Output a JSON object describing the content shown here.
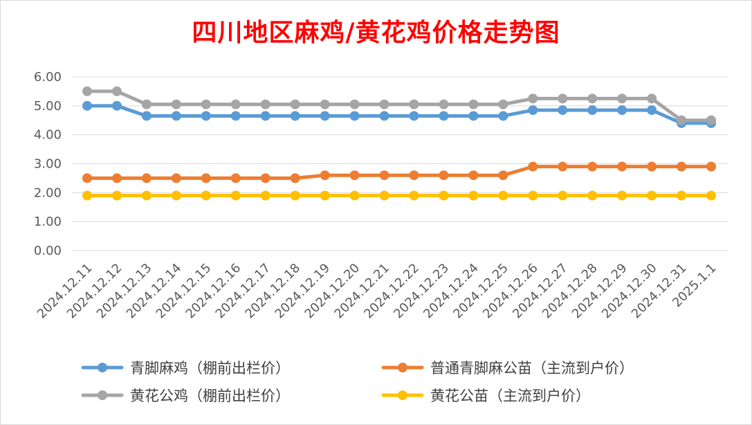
{
  "chart_data": {
    "type": "line",
    "title": "四川地区麻鸡/黄花鸡价格走势图",
    "xlabel": "",
    "ylabel": "",
    "ylim": [
      0,
      6
    ],
    "ytick_step": 1,
    "ytick_labels": [
      "0.00",
      "1.00",
      "2.00",
      "3.00",
      "4.00",
      "5.00",
      "6.00"
    ],
    "grid": "horizontal",
    "legend_position": "bottom",
    "categories": [
      "2024.12.11",
      "2024.12.12",
      "2024.12.13",
      "2024.12.14",
      "2024.12.15",
      "2024.12.16",
      "2024.12.17",
      "2024.12.18",
      "2024.12.19",
      "2024.12.20",
      "2024.12.21",
      "2024.12.22",
      "2024.12.23",
      "2024.12.24",
      "2024.12.25",
      "2024.12.26",
      "2024.12.27",
      "2024.12.28",
      "2024.12.29",
      "2024.12.30",
      "2024.12.31",
      "2025.1.1"
    ],
    "series": [
      {
        "name": "青脚麻鸡（棚前出栏价）",
        "color": "#5b9bd5",
        "values": [
          5.0,
          5.0,
          4.65,
          4.65,
          4.65,
          4.65,
          4.65,
          4.65,
          4.65,
          4.65,
          4.65,
          4.65,
          4.65,
          4.65,
          4.65,
          4.85,
          4.85,
          4.85,
          4.85,
          4.85,
          4.4,
          4.4
        ]
      },
      {
        "name": "普通青脚麻公苗（主流到户价）",
        "color": "#ed7d31",
        "values": [
          2.5,
          2.5,
          2.5,
          2.5,
          2.5,
          2.5,
          2.5,
          2.5,
          2.6,
          2.6,
          2.6,
          2.6,
          2.6,
          2.6,
          2.6,
          2.9,
          2.9,
          2.9,
          2.9,
          2.9,
          2.9,
          2.9
        ]
      },
      {
        "name": "黄花公鸡（棚前出栏价）",
        "color": "#a5a5a5",
        "values": [
          5.5,
          5.5,
          5.05,
          5.05,
          5.05,
          5.05,
          5.05,
          5.05,
          5.05,
          5.05,
          5.05,
          5.05,
          5.05,
          5.05,
          5.05,
          5.25,
          5.25,
          5.25,
          5.25,
          5.25,
          4.5,
          4.5
        ]
      },
      {
        "name": "黄花公苗（主流到户价）",
        "color": "#ffc000",
        "values": [
          1.9,
          1.9,
          1.9,
          1.9,
          1.9,
          1.9,
          1.9,
          1.9,
          1.9,
          1.9,
          1.9,
          1.9,
          1.9,
          1.9,
          1.9,
          1.9,
          1.9,
          1.9,
          1.9,
          1.9,
          1.9,
          1.9
        ]
      }
    ],
    "legend_order": [
      0,
      1,
      2,
      3
    ]
  }
}
